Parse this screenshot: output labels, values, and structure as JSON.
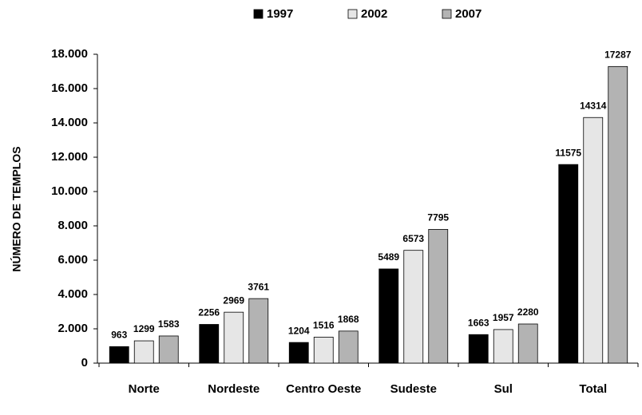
{
  "chart_data": {
    "type": "bar",
    "ylabel": "NÚMERO DE TEMPLOS",
    "categories": [
      "Norte",
      "Nordeste",
      "Centro Oeste",
      "Sudeste",
      "Sul",
      "Total"
    ],
    "series": [
      {
        "name": "1997",
        "color": "#000000",
        "values": [
          963,
          2256,
          1204,
          5489,
          1663,
          11575
        ]
      },
      {
        "name": "2002",
        "color": "#e6e6e6",
        "values": [
          1299,
          2969,
          1516,
          6573,
          1957,
          14314
        ]
      },
      {
        "name": "2007",
        "color": "#b3b3b3",
        "values": [
          1583,
          3761,
          1868,
          7795,
          2280,
          17287
        ]
      }
    ],
    "ylim": [
      0,
      18000
    ],
    "yticks": [
      0,
      {
        "value": 2000,
        "label": "2.000"
      },
      {
        "value": 4000,
        "label": "4.000"
      },
      {
        "value": 6000,
        "label": "6.000"
      },
      {
        "value": 8000,
        "label": "8.000"
      },
      {
        "value": 10000,
        "label": "10.000"
      },
      {
        "value": 12000,
        "label": "12.000"
      },
      {
        "value": 14000,
        "label": "14.000"
      },
      {
        "value": 16000,
        "label": "16.000"
      },
      {
        "value": 18000,
        "label": "18.000"
      }
    ],
    "legend": "top"
  }
}
